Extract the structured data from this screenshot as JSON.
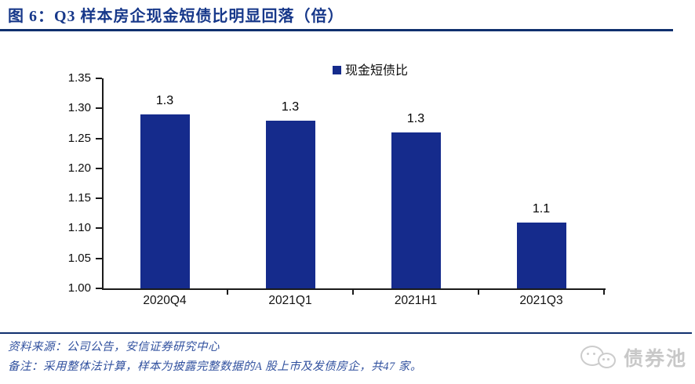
{
  "header": {
    "title": "图 6：Q3 样本房企现金短债比明显回落（倍）"
  },
  "chart_data": {
    "type": "bar",
    "title": "图 6：Q3 样本房企现金短债比明显回落（倍）",
    "unit": "倍",
    "legend": [
      {
        "label": "现金短债比",
        "color": "#152b8c"
      }
    ],
    "legend_position": "top-center",
    "grid": false,
    "categories": [
      "2020Q4",
      "2021Q1",
      "2021H1",
      "2021Q3"
    ],
    "series": [
      {
        "name": "现金短债比",
        "values": [
          1.29,
          1.28,
          1.26,
          1.11
        ],
        "data_labels": [
          "1.3",
          "1.3",
          "1.3",
          "1.1"
        ]
      }
    ],
    "bar_color": "#152b8c",
    "ylim": [
      1.0,
      1.35
    ],
    "yticks": [
      1.0,
      1.05,
      1.1,
      1.15,
      1.2,
      1.25,
      1.3,
      1.35
    ],
    "ytick_labels": [
      "1.00",
      "1.05",
      "1.10",
      "1.15",
      "1.20",
      "1.25",
      "1.30",
      "1.35"
    ]
  },
  "footer": {
    "source": "资料来源：公司公告，安信证券研究中心",
    "note": "备注：采用整体法计算，样本为披露完整数据的A 股上市及发债房企，共47 家。",
    "logo_text": "债券池"
  }
}
